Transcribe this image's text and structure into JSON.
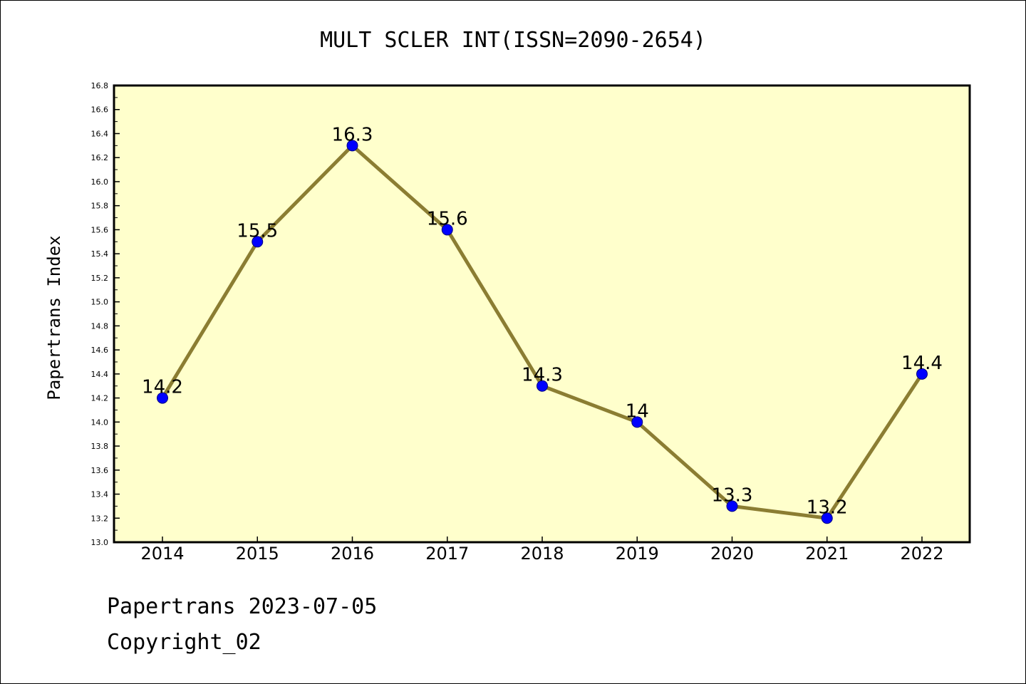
{
  "colors": {
    "plot_background": "#ffffcc",
    "line": "#8b7d32",
    "marker_fill": "#0000ff",
    "marker_stroke": "#000080",
    "axis": "#000000"
  },
  "chart_data": {
    "type": "line",
    "title": "MULT SCLER INT(ISSN=2090-2654)",
    "xlabel": "",
    "ylabel": "Papertrans Index",
    "categories": [
      "2014",
      "2015",
      "2016",
      "2017",
      "2018",
      "2019",
      "2020",
      "2021",
      "2022"
    ],
    "values": [
      14.2,
      15.5,
      16.3,
      15.6,
      14.3,
      14.0,
      13.3,
      13.2,
      14.4
    ],
    "data_labels": [
      "14.2",
      "15.5",
      "16.3",
      "15.6",
      "14.3",
      "14",
      "13.3",
      "13.2",
      "14.4"
    ],
    "ylim": [
      13.0,
      16.8
    ],
    "yticks": [
      "13.0",
      "13.2",
      "13.4",
      "13.6",
      "13.8",
      "14.0",
      "14.2",
      "14.4",
      "14.6",
      "14.8",
      "15.0",
      "15.2",
      "15.4",
      "15.6",
      "15.8",
      "16.0",
      "16.2",
      "16.4",
      "16.6",
      "16.8"
    ],
    "grid": false,
    "legend": "none"
  },
  "footer": {
    "line1": "Papertrans 2023-07-05",
    "line2": "Copyright_02"
  }
}
